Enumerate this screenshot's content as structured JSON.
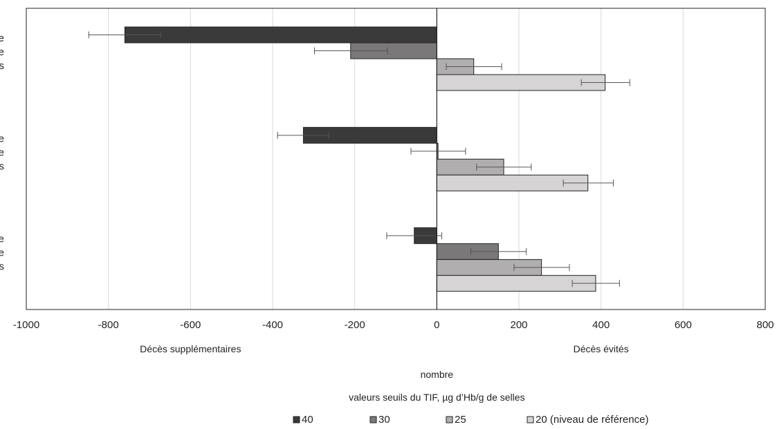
{
  "chart_data": {
    "type": "bar",
    "orientation": "horizontal",
    "categories": [
      "",
      "",
      ""
    ],
    "series": [
      {
        "name": "40",
        "color": "#3a3a3a",
        "values": [
          -760,
          -325,
          -55
        ],
        "err_low": [
          -848,
          -388,
          -122
        ],
        "err_high": [
          -673,
          -263,
          12
        ]
      },
      {
        "name": "30",
        "color": "#7a7878",
        "values": [
          -210,
          3,
          150
        ],
        "err_low": [
          -298,
          -63,
          83
        ],
        "err_high": [
          -120,
          70,
          218
        ]
      },
      {
        "name": "25",
        "color": "#b0aeae",
        "values": [
          90,
          163,
          255
        ],
        "err_low": [
          23,
          97,
          188
        ],
        "err_high": [
          158,
          230,
          323
        ]
      },
      {
        "name": "20 (niveau de référence)",
        "color": "#d6d4d4",
        "values": [
          410,
          368,
          387
        ],
        "err_low": [
          352,
          308,
          330
        ],
        "err_high": [
          470,
          430,
          445
        ]
      }
    ],
    "xlim": [
      -1000,
      800
    ],
    "xticks": [
      "-1000",
      "-800",
      "-600",
      "-400",
      "-200",
      "0",
      "200",
      "400",
      "600",
      "800"
    ],
    "xlabel": "nombre",
    "left_caption": "Décès supplémentaires",
    "right_caption": "Décès évités",
    "legend_title": "valeurs seuils du TIF, µg d’Hb/g de selles",
    "legend_position": "bottom",
    "gridlines": "vertical",
    "category_label_fragments": [
      [
        "e",
        "e",
        "s"
      ],
      [
        "e",
        "e",
        "s"
      ],
      [
        "e",
        "e",
        "s"
      ]
    ]
  }
}
